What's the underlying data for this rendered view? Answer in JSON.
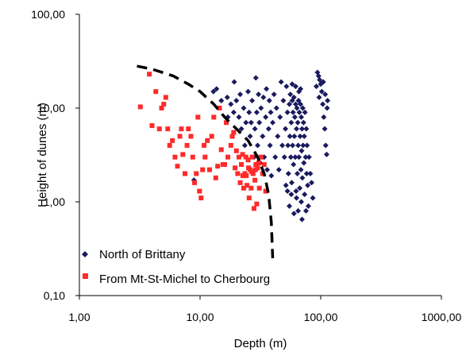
{
  "chart_data": {
    "type": "scatter",
    "title": "",
    "xlabel": "Depth  (m)",
    "ylabel": "Height of dunes  (m)",
    "x_scale": "log",
    "y_scale": "log",
    "xlim": [
      1,
      1000
    ],
    "ylim": [
      0.1,
      100
    ],
    "x_ticks": [
      "1,00",
      "10,00",
      "100,00",
      "1000,00"
    ],
    "y_ticks": [
      "0,10",
      "1,00",
      "10,00",
      "100,00"
    ],
    "grid": false,
    "legend_position": "bottom-left",
    "series": [
      {
        "name": "North of Brittany",
        "marker": "diamond",
        "color": "#1a1a5e",
        "points": [
          [
            8.9,
            1.7
          ],
          [
            12.9,
            15
          ],
          [
            13.7,
            16
          ],
          [
            15,
            12
          ],
          [
            16.8,
            13
          ],
          [
            17,
            8
          ],
          [
            18,
            11
          ],
          [
            19,
            9
          ],
          [
            19.2,
            19
          ],
          [
            20,
            12
          ],
          [
            21,
            8
          ],
          [
            21.5,
            14
          ],
          [
            22,
            6
          ],
          [
            23,
            10
          ],
          [
            23.5,
            4
          ],
          [
            24,
            7
          ],
          [
            25,
            15
          ],
          [
            25.5,
            9
          ],
          [
            26,
            5
          ],
          [
            26.5,
            7
          ],
          [
            27,
            12
          ],
          [
            28,
            3
          ],
          [
            28.5,
            6
          ],
          [
            29,
            21
          ],
          [
            29.5,
            9
          ],
          [
            30,
            4
          ],
          [
            30.5,
            14
          ],
          [
            31,
            7
          ],
          [
            31.5,
            2.6
          ],
          [
            32,
            10
          ],
          [
            33,
            5
          ],
          [
            33.5,
            13
          ],
          [
            34,
            3
          ],
          [
            35,
            8
          ],
          [
            35.5,
            16
          ],
          [
            36,
            2.2
          ],
          [
            37,
            6
          ],
          [
            37.5,
            12
          ],
          [
            38,
            4
          ],
          [
            38.5,
            9
          ],
          [
            39,
            1.9
          ],
          [
            40,
            7
          ],
          [
            41,
            14
          ],
          [
            42,
            3
          ],
          [
            43,
            10
          ],
          [
            44,
            5
          ],
          [
            45,
            2.2
          ],
          [
            46,
            8
          ],
          [
            47,
            19
          ],
          [
            48,
            4
          ],
          [
            49,
            12
          ],
          [
            50,
            3
          ],
          [
            51,
            6
          ],
          [
            51.5,
            1.5
          ],
          [
            52,
            17
          ],
          [
            53,
            9
          ],
          [
            53.5,
            4
          ],
          [
            54,
            2
          ],
          [
            55,
            11
          ],
          [
            55.5,
            5
          ],
          [
            56,
            14
          ],
          [
            56.5,
            3
          ],
          [
            57,
            7
          ],
          [
            57.5,
            1.6
          ],
          [
            58,
            12
          ],
          [
            58.5,
            4
          ],
          [
            59,
            9
          ],
          [
            59.5,
            2.5
          ],
          [
            60,
            13
          ],
          [
            60.5,
            5
          ],
          [
            61,
            8
          ],
          [
            61.5,
            3
          ],
          [
            62,
            11
          ],
          [
            62.5,
            1.3
          ],
          [
            63,
            6
          ],
          [
            63.5,
            10
          ],
          [
            64,
            2
          ],
          [
            64.5,
            7
          ],
          [
            65,
            4
          ],
          [
            65.5,
            12
          ],
          [
            66,
            3
          ],
          [
            66.5,
            9
          ],
          [
            67,
            1.4
          ],
          [
            67.5,
            5
          ],
          [
            68,
            11
          ],
          [
            68.5,
            2.2
          ],
          [
            69,
            8
          ],
          [
            69.5,
            3.5
          ],
          [
            70,
            6
          ],
          [
            70.5,
            1.8
          ],
          [
            71,
            10
          ],
          [
            71.5,
            4
          ],
          [
            72,
            7
          ],
          [
            72.5,
            2.6
          ],
          [
            73,
            5
          ],
          [
            73.5,
            1.2
          ],
          [
            74,
            9
          ],
          [
            75,
            3
          ],
          [
            75.5,
            0.8
          ],
          [
            76,
            6
          ],
          [
            76.5,
            2
          ],
          [
            77,
            4
          ],
          [
            78,
            1.5
          ],
          [
            79,
            0.9
          ],
          [
            80,
            3
          ],
          [
            82,
            2
          ],
          [
            84,
            1.6
          ],
          [
            86,
            1.1
          ],
          [
            70,
            0.65
          ],
          [
            69,
            1
          ],
          [
            65,
            0.8
          ],
          [
            63,
            1.1
          ],
          [
            60,
            0.75
          ],
          [
            57,
            1.2
          ],
          [
            55,
            0.9
          ],
          [
            53,
            1.3
          ],
          [
            66,
            15
          ],
          [
            68,
            16
          ],
          [
            62,
            17
          ],
          [
            58,
            18
          ],
          [
            92,
            17
          ],
          [
            94,
            24
          ],
          [
            96,
            22
          ],
          [
            98,
            20
          ],
          [
            100,
            18
          ],
          [
            102,
            15
          ],
          [
            104,
            11
          ],
          [
            106,
            8
          ],
          [
            108,
            6
          ],
          [
            110,
            4
          ],
          [
            112,
            3.2
          ],
          [
            113,
            10
          ],
          [
            114,
            12
          ],
          [
            109,
            14
          ],
          [
            97,
            13
          ],
          [
            105,
            19
          ]
        ]
      },
      {
        "name": "From Mt-St-Michel to Cherbourg",
        "marker": "square",
        "color": "#ff2a2a",
        "points": [
          [
            3.2,
            10.3
          ],
          [
            3.8,
            23
          ],
          [
            4,
            6.5
          ],
          [
            4.3,
            15
          ],
          [
            4.6,
            6
          ],
          [
            4.8,
            10
          ],
          [
            5,
            11
          ],
          [
            5.2,
            13
          ],
          [
            5.4,
            6
          ],
          [
            5.6,
            4
          ],
          [
            5.9,
            4.5
          ],
          [
            6.2,
            3
          ],
          [
            6.5,
            2.4
          ],
          [
            6.8,
            5
          ],
          [
            7,
            6
          ],
          [
            7.2,
            3.2
          ],
          [
            7.5,
            2
          ],
          [
            7.8,
            4
          ],
          [
            8,
            6
          ],
          [
            8.4,
            5
          ],
          [
            8.7,
            3
          ],
          [
            9,
            1.6
          ],
          [
            9.3,
            2
          ],
          [
            9.6,
            8
          ],
          [
            9.9,
            1.3
          ],
          [
            10.2,
            1.1
          ],
          [
            10.5,
            2.2
          ],
          [
            10.8,
            4
          ],
          [
            11,
            3
          ],
          [
            11.5,
            4.5
          ],
          [
            12,
            2.2
          ],
          [
            12.5,
            5
          ],
          [
            13,
            8
          ],
          [
            13.5,
            1.8
          ],
          [
            14,
            2.4
          ],
          [
            14.5,
            10
          ],
          [
            15,
            3.6
          ],
          [
            15.5,
            2.5
          ],
          [
            16,
            2.5
          ],
          [
            16.5,
            7
          ],
          [
            17,
            3
          ],
          [
            18,
            4
          ],
          [
            18.5,
            5
          ],
          [
            19,
            5.5
          ],
          [
            19.5,
            2.3
          ],
          [
            20,
            3.5
          ],
          [
            20.5,
            2
          ],
          [
            21,
            3
          ],
          [
            21.5,
            1.6
          ],
          [
            22,
            2.5
          ],
          [
            22.5,
            3.2
          ],
          [
            23,
            1.4
          ],
          [
            23.5,
            2
          ],
          [
            24,
            3
          ],
          [
            24.5,
            1.5
          ],
          [
            25,
            2.8
          ],
          [
            25.5,
            1.1
          ],
          [
            26,
            2.2
          ],
          [
            26.5,
            1.4
          ],
          [
            27,
            3
          ],
          [
            27.5,
            2
          ],
          [
            28,
            0.85
          ],
          [
            28.5,
            1.7
          ],
          [
            29,
            2.5
          ],
          [
            29.5,
            0.95
          ],
          [
            30,
            2.3
          ],
          [
            31,
            1.4
          ],
          [
            32,
            3
          ],
          [
            33,
            2
          ],
          [
            34,
            2.5
          ],
          [
            35,
            1.3
          ],
          [
            22.6,
            1.9
          ],
          [
            24.2,
            1.9
          ],
          [
            25.2,
            2.3
          ],
          [
            26.8,
            2.1
          ],
          [
            28.8,
            2.2
          ],
          [
            30.6,
            2.6
          ]
        ]
      }
    ],
    "annotations": [
      {
        "type": "dashed-curve",
        "color": "#000000",
        "points": [
          [
            3,
            28
          ],
          [
            4,
            26
          ],
          [
            6,
            22
          ],
          [
            8,
            18
          ],
          [
            10,
            15
          ],
          [
            13,
            11
          ],
          [
            16,
            8
          ],
          [
            20,
            6
          ],
          [
            25,
            4.5
          ],
          [
            30,
            3
          ],
          [
            34,
            2
          ],
          [
            37,
            1.2
          ],
          [
            39,
            0.6
          ],
          [
            40,
            0.25
          ]
        ]
      }
    ]
  }
}
